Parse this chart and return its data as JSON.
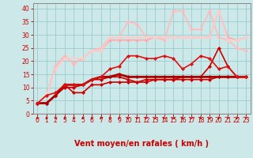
{
  "title": "",
  "xlabel": "Vent moyen/en rafales ( km/h )",
  "ylabel": "",
  "xlim": [
    -0.5,
    23.5
  ],
  "ylim": [
    0,
    42
  ],
  "yticks": [
    0,
    5,
    10,
    15,
    20,
    25,
    30,
    35,
    40
  ],
  "xticks": [
    0,
    1,
    2,
    3,
    4,
    5,
    6,
    7,
    8,
    9,
    10,
    11,
    12,
    13,
    14,
    15,
    16,
    17,
    18,
    19,
    20,
    21,
    22,
    23
  ],
  "bg_color": "#cce8e8",
  "grid_color": "#99cccc",
  "lines": [
    {
      "x": [
        0,
        1,
        2,
        3,
        4,
        5,
        6,
        7,
        8,
        9,
        10,
        11,
        12,
        13,
        14,
        15,
        16,
        17,
        18,
        19,
        20,
        21,
        22,
        23
      ],
      "y": [
        4,
        4,
        7,
        11,
        8,
        8,
        11,
        11,
        12,
        12,
        12,
        12,
        13,
        13,
        13,
        13,
        13,
        13,
        13,
        13,
        14,
        14,
        14,
        14
      ],
      "color": "#cc0000",
      "lw": 1.2,
      "marker": "D",
      "ms": 2.0,
      "zorder": 4
    },
    {
      "x": [
        0,
        1,
        2,
        3,
        4,
        5,
        6,
        7,
        8,
        9,
        10,
        11,
        12,
        13,
        14,
        15,
        16,
        17,
        18,
        19,
        20,
        21,
        22,
        23
      ],
      "y": [
        4,
        4,
        7,
        10,
        10,
        11,
        13,
        13,
        14,
        14,
        13,
        12,
        12,
        13,
        13,
        13,
        14,
        14,
        14,
        18,
        25,
        18,
        14,
        14
      ],
      "color": "#cc0000",
      "lw": 1.2,
      "marker": "D",
      "ms": 2.0,
      "zorder": 4
    },
    {
      "x": [
        0,
        1,
        2,
        3,
        4,
        5,
        6,
        7,
        8,
        9,
        10,
        11,
        12,
        13,
        14,
        15,
        16,
        17,
        18,
        19,
        20,
        21,
        22,
        23
      ],
      "y": [
        4,
        4,
        7,
        11,
        11,
        11,
        13,
        14,
        14,
        15,
        14,
        14,
        14,
        14,
        14,
        14,
        14,
        14,
        14,
        14,
        14,
        14,
        14,
        14
      ],
      "color": "#aa0000",
      "lw": 2.0,
      "marker": "D",
      "ms": 2.0,
      "zorder": 4
    },
    {
      "x": [
        0,
        1,
        2,
        3,
        4,
        5,
        6,
        7,
        8,
        9,
        10,
        11,
        12,
        13,
        14,
        15,
        16,
        17,
        18,
        19,
        20,
        21,
        22,
        23
      ],
      "y": [
        4,
        7,
        8,
        11,
        11,
        11,
        13,
        14,
        17,
        18,
        22,
        22,
        21,
        21,
        22,
        21,
        17,
        19,
        22,
        21,
        17,
        18,
        14,
        14
      ],
      "color": "#dd1111",
      "lw": 1.2,
      "marker": "D",
      "ms": 2.0,
      "zorder": 5
    },
    {
      "x": [
        0,
        1,
        2,
        3,
        4,
        5,
        6,
        7,
        8,
        9,
        10,
        11,
        12,
        13,
        14,
        15,
        16,
        17,
        18,
        19,
        20,
        21,
        22,
        23
      ],
      "y": [
        4,
        7,
        18,
        22,
        19,
        21,
        24,
        24,
        28,
        28,
        28,
        28,
        28,
        29,
        29,
        29,
        29,
        29,
        29,
        29,
        39,
        29,
        28,
        29
      ],
      "color": "#ffaaaa",
      "lw": 1.2,
      "marker": "D",
      "ms": 2.0,
      "zorder": 3
    },
    {
      "x": [
        0,
        1,
        2,
        3,
        4,
        5,
        6,
        7,
        8,
        9,
        10,
        11,
        12,
        13,
        14,
        15,
        16,
        17,
        18,
        19,
        20,
        21,
        22,
        23
      ],
      "y": [
        4,
        7,
        18,
        22,
        19,
        21,
        24,
        25,
        29,
        29,
        35,
        34,
        29,
        29,
        28,
        39,
        39,
        32,
        32,
        39,
        29,
        28,
        25,
        24
      ],
      "color": "#ffbbbb",
      "lw": 1.2,
      "marker": "D",
      "ms": 2.0,
      "zorder": 3
    },
    {
      "x": [
        0,
        1,
        2,
        3,
        4,
        5,
        6,
        7,
        8,
        9,
        10,
        11,
        12,
        13,
        14,
        15,
        16,
        17,
        18,
        19,
        20,
        21,
        22,
        23
      ],
      "y": [
        4,
        7,
        17,
        21,
        21,
        21,
        24,
        24,
        29,
        29,
        29,
        29,
        29,
        29,
        29,
        29,
        29,
        29,
        29,
        29,
        39,
        28,
        28,
        29
      ],
      "color": "#ffcccc",
      "lw": 1.2,
      "marker": "D",
      "ms": 2.0,
      "zorder": 3
    }
  ],
  "arrow_color": "#cc0000",
  "tick_color": "#cc0000",
  "xlabel_color": "#cc0000",
  "xlabel_fontsize": 7,
  "tick_fontsize": 5.5
}
